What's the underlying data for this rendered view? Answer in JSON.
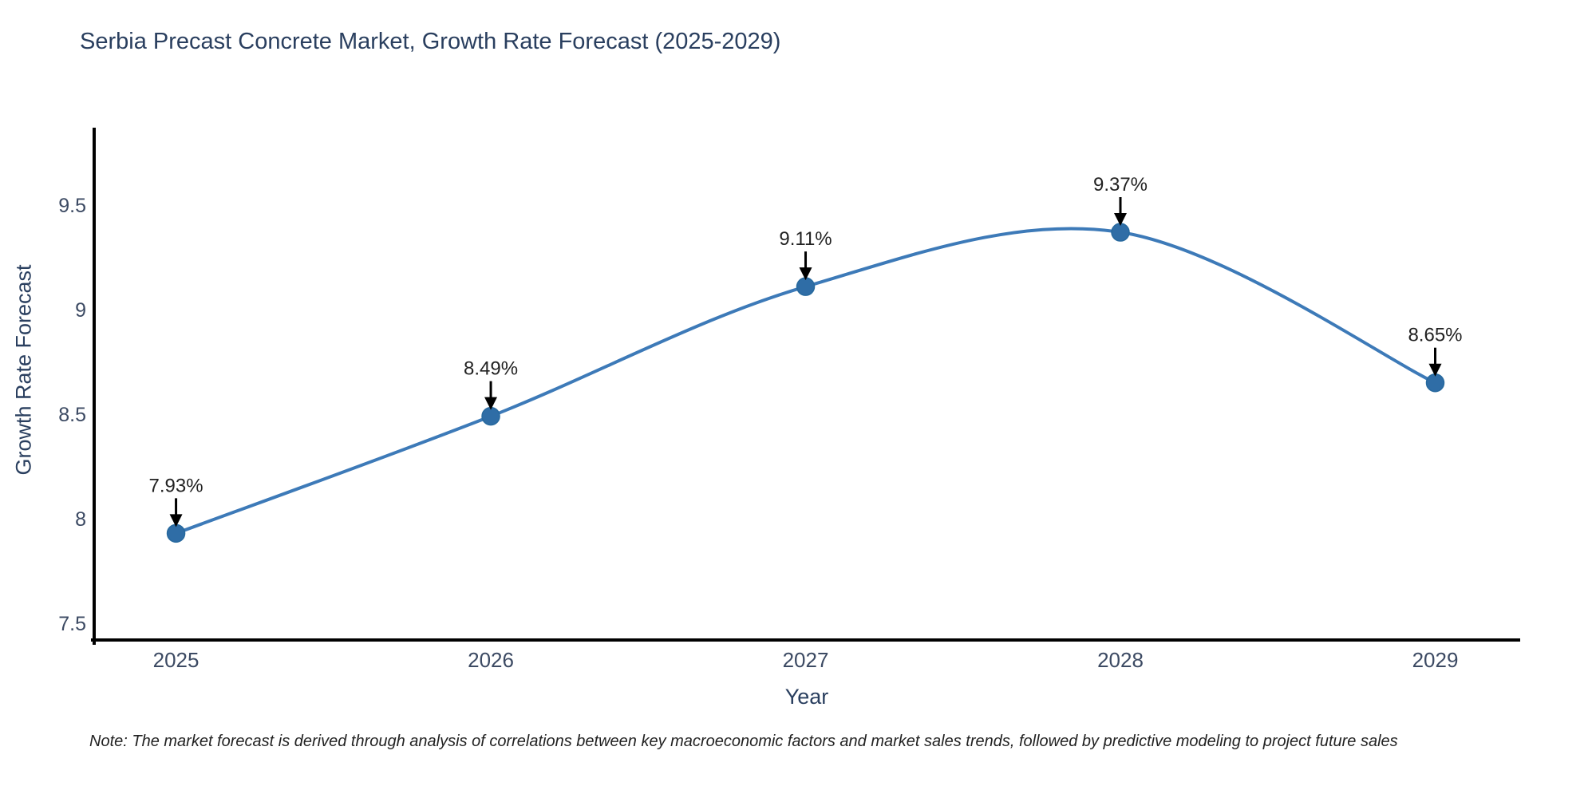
{
  "page": {
    "background": "#ffffff"
  },
  "chart_data": {
    "type": "line",
    "title": "Serbia Precast Concrete Market, Growth Rate Forecast (2025-2029)",
    "xlabel": "Year",
    "ylabel": "Growth Rate Forecast",
    "categories": [
      "2025",
      "2026",
      "2027",
      "2028",
      "2029"
    ],
    "x": [
      2025,
      2026,
      2027,
      2028,
      2029
    ],
    "values": [
      7.93,
      8.49,
      9.11,
      9.37,
      8.65
    ],
    "point_labels": [
      "7.93%",
      "8.49%",
      "9.11%",
      "9.37%",
      "8.65%"
    ],
    "yticks": [
      7.5,
      8,
      8.5,
      9,
      9.5
    ],
    "ytick_labels": [
      "7.5",
      "8",
      "8.5",
      "9",
      "9.5"
    ],
    "ylim": [
      7.42,
      9.87
    ],
    "xlim": [
      2024.74,
      2029.27
    ],
    "grid": false,
    "legend": null,
    "line_shape": "spline",
    "line_color": "#3d7ab8",
    "marker_color": "#2f6da6",
    "marker_edge_color": "#27699e",
    "annotation_arrow_color": "#000000",
    "annotation_text_color": "#222222",
    "axis_line_color": "#000000",
    "title_color": "#2a3f5f",
    "tick_color": "#3c4a63"
  },
  "footnote": {
    "text": "Note: The market forecast is derived through analysis of correlations between key macroeconomic factors and market sales trends, followed by predictive modeling to project future sales"
  }
}
